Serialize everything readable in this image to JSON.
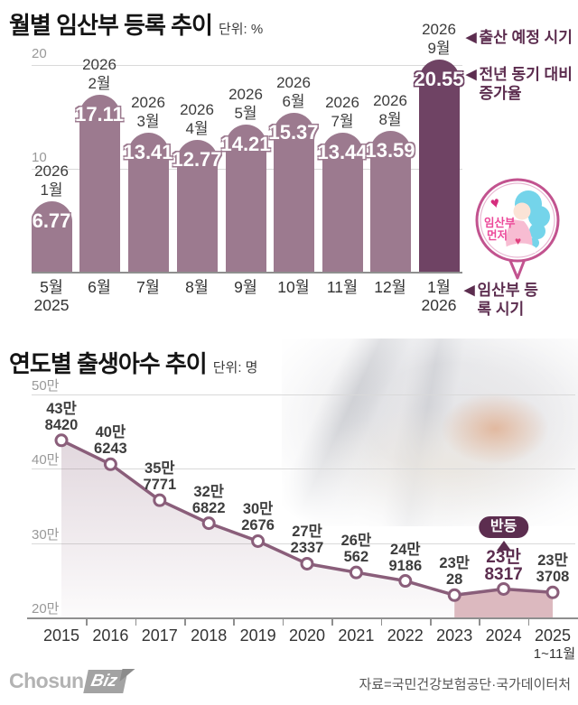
{
  "ui": {
    "arrow_left": "◀",
    "pregnant_badge": {
      "line1": "임산부",
      "line2": "먼저"
    }
  },
  "footer": {
    "logo_chosun": "Chosun",
    "logo_biz": "Biz",
    "source": "자료=국민건강보험공단·국가데이터처"
  },
  "colors": {
    "bar": "#9c7a8f",
    "bar_highlight": "#6f4364",
    "line": "#8a5e7a",
    "area_shade": "#dcb9bf",
    "plum": "#5c2d4f",
    "grid": "#d9d9d9",
    "axis_gray": "#999999"
  },
  "chart_data": [
    {
      "type": "bar",
      "title": "월별 임산부 등록 추이",
      "unit_label": "단위: %",
      "ylabel": "",
      "ylim": [
        0,
        20
      ],
      "y_ticks": [
        20,
        10,
        0
      ],
      "categories": [
        [
          "5월",
          "2025"
        ],
        [
          "6월"
        ],
        [
          "7월"
        ],
        [
          "8월"
        ],
        [
          "9월"
        ],
        [
          "10월"
        ],
        [
          "11월"
        ],
        [
          "12월"
        ],
        [
          "1월",
          "2026"
        ]
      ],
      "top_labels": [
        [
          "2026",
          "1월"
        ],
        [
          "2026",
          "2월"
        ],
        [
          "2026",
          "3월"
        ],
        [
          "2026",
          "4월"
        ],
        [
          "2026",
          "5월"
        ],
        [
          "2026",
          "6월"
        ],
        [
          "2026",
          "7월"
        ],
        [
          "2026",
          "8월"
        ],
        [
          "2026",
          "9월"
        ]
      ],
      "values": [
        6.77,
        17.11,
        13.41,
        12.77,
        14.21,
        15.37,
        13.44,
        13.59,
        20.55
      ],
      "highlight_index": 8,
      "annotations": [
        "출산 예정 시기",
        "전년 동기 대비 증가율",
        "임산부 등록 시기"
      ]
    },
    {
      "type": "line",
      "title": "연도별 출생아수 추이",
      "unit_label": "단위: 명",
      "ylim": [
        200000,
        500000
      ],
      "y_ticks": [
        "50만",
        "40만",
        "30만",
        "20만"
      ],
      "y_tick_values": [
        500000,
        400000,
        300000,
        200000
      ],
      "categories": [
        "2015",
        "2016",
        "2017",
        "2018",
        "2019",
        "2020",
        "2021",
        "2022",
        "2023",
        "2024",
        "2025"
      ],
      "last_category_note": "1~11월",
      "values": [
        438420,
        406243,
        357771,
        326822,
        302676,
        272337,
        260562,
        249186,
        230028,
        238317,
        233708
      ],
      "point_labels": [
        [
          "43만",
          "8420"
        ],
        [
          "40만",
          "6243"
        ],
        [
          "35만",
          "7771"
        ],
        [
          "32만",
          "6822"
        ],
        [
          "30만",
          "2676"
        ],
        [
          "27만",
          "2337"
        ],
        [
          "26만",
          "562"
        ],
        [
          "24만",
          "9186"
        ],
        [
          "23만",
          "28"
        ],
        [
          "23만",
          "8317"
        ],
        [
          "23만",
          "3708"
        ]
      ],
      "highlight_index": 9,
      "badge_label": "반등",
      "shade_from_index": 8
    }
  ]
}
